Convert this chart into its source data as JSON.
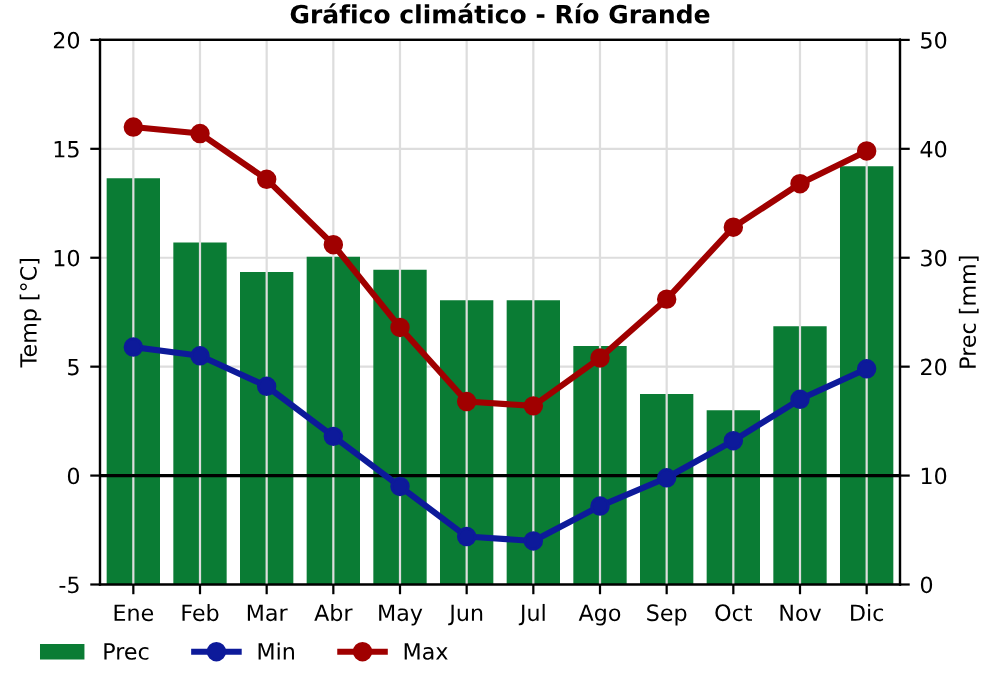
{
  "chart_data": {
    "type": "line",
    "title": "Gráfico climático - Río Grande",
    "ylabel": "Temp [°C]",
    "y2label": "Prec [mm]",
    "categories": [
      "Ene",
      "Feb",
      "Mar",
      "Abr",
      "May",
      "Jun",
      "Jul",
      "Ago",
      "Sep",
      "Oct",
      "Nov",
      "Dic"
    ],
    "series": [
      {
        "name": "Prec",
        "type": "bar",
        "axis": "y2",
        "color": "#0a7c34",
        "values": [
          37.3,
          31.4,
          28.7,
          30.1,
          28.9,
          26.1,
          26.1,
          21.9,
          17.5,
          16.0,
          23.7,
          38.4
        ]
      },
      {
        "name": "Min",
        "color": "#0d1a9a",
        "values": [
          5.9,
          5.5,
          4.1,
          1.8,
          -0.5,
          -2.8,
          -3.0,
          -1.4,
          -0.1,
          1.6,
          3.5,
          4.9
        ]
      },
      {
        "name": "Max",
        "color": "#a00000",
        "values": [
          16.0,
          15.7,
          13.6,
          10.6,
          6.8,
          3.4,
          3.2,
          5.4,
          8.1,
          11.4,
          13.4,
          14.9
        ]
      }
    ],
    "ylim": [
      -5,
      20
    ],
    "yticks": [
      -5,
      0,
      5,
      10,
      15,
      20
    ],
    "y2lim": [
      0,
      50
    ],
    "y2ticks": [
      0,
      10,
      20,
      30,
      40,
      50
    ],
    "ref_lines": [
      {
        "axis": "y",
        "value": 0,
        "color": "#000000"
      }
    ],
    "grid": true,
    "legend": "bottom left",
    "marker": "circle",
    "line_style": "solid"
  }
}
